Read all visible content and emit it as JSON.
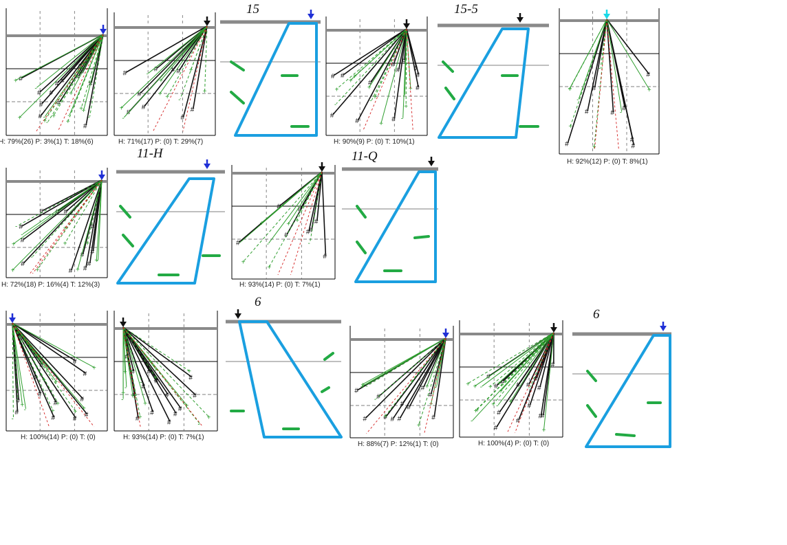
{
  "colors": {
    "blue_arrow": "#1f2fd6",
    "cyan_arrow": "#19d9e8",
    "black_arrow": "#111111",
    "trapezoid": "#1a9fe0",
    "dash_mark": "#22aa44",
    "green_line": "#2e9e2e",
    "red_dash": "#d42020",
    "gray_band": "#8a8a8a"
  },
  "charts": [
    {
      "caption": "H: 79%(26)  P: 3%(1)  T: 18%(6)",
      "arrow": "blue"
    },
    {
      "caption": "H: 71%(17)  P: (0)  T: 29%(7)",
      "arrow": "black"
    },
    {
      "caption": "H: 90%(9)  P: (0)  T: 10%(1)",
      "arrow": "black"
    },
    {
      "caption": "H: 92%(12)  P: (0)  T: 8%(1)",
      "arrow": "cyan"
    },
    {
      "caption": "H: 72%(18)  P: 16%(4)  T: 12%(3)",
      "arrow": "blue"
    },
    {
      "caption": "H: 93%(14)  P: (0)  T: 7%(1)",
      "arrow": "black"
    },
    {
      "caption": "H: 100%(14)  P: (0)  T: (0)",
      "arrow": "blue"
    },
    {
      "caption": "H: 93%(14)  P: (0)  T: 7%(1)",
      "arrow": "black"
    },
    {
      "caption": "H: 88%(7)  P: 12%(1)  T: (0)",
      "arrow": "blue"
    },
    {
      "caption": "H: 100%(4)  P: (0)  T: (0)",
      "arrow": "black"
    }
  ],
  "diagrams": [
    {
      "title": "15",
      "arrow": "blue"
    },
    {
      "title": "15-5",
      "arrow": "black"
    },
    {
      "title": "11-H",
      "arrow": "blue"
    },
    {
      "title": "11-Q",
      "arrow": "black"
    },
    {
      "title": "6",
      "arrow": "black"
    },
    {
      "title": "6",
      "arrow": "blue"
    }
  ]
}
